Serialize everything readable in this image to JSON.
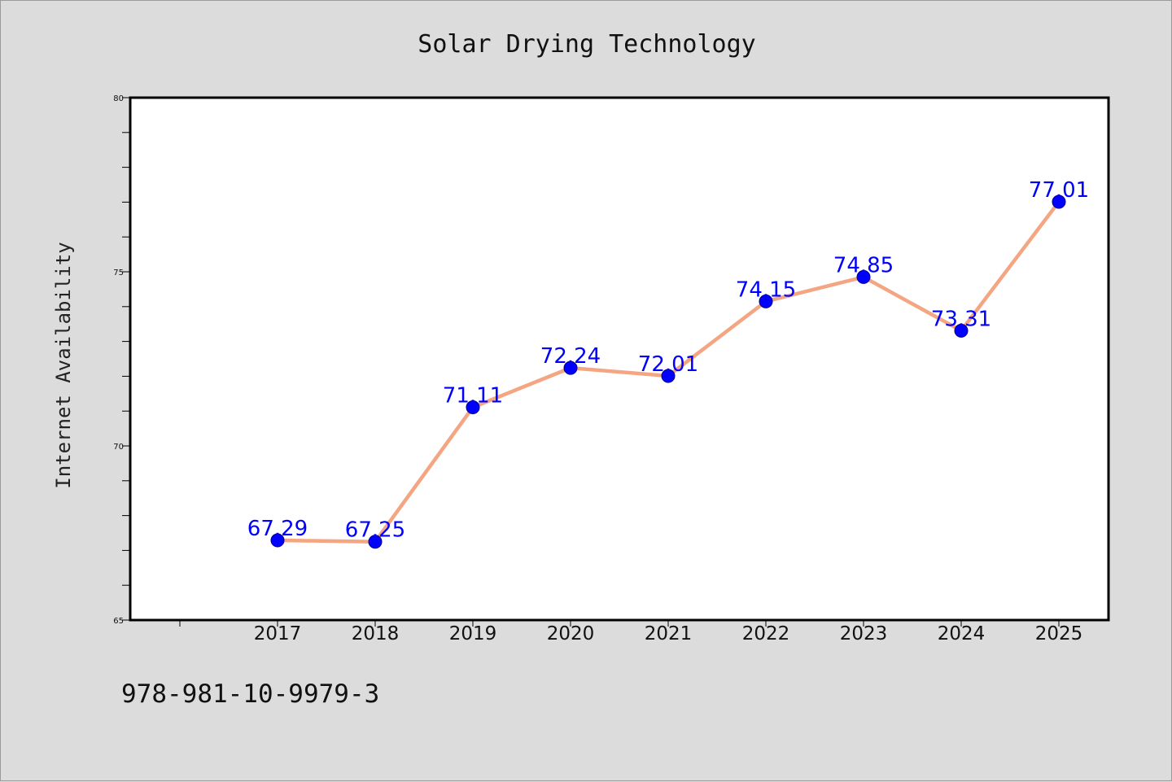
{
  "footnote": "978-981-10-9979-3",
  "chart_data": {
    "type": "line",
    "title": "Solar Drying Technology",
    "xlabel": "",
    "ylabel": "Internet Availability",
    "categories": [
      "2017",
      "2018",
      "2019",
      "2020",
      "2021",
      "2022",
      "2023",
      "2024",
      "2025"
    ],
    "series": [
      {
        "values": [
          67.29,
          67.25,
          71.11,
          72.24,
          72.01,
          74.15,
          74.85,
          73.31,
          77.01
        ],
        "labels": [
          "67.29",
          "67.25",
          "71.11",
          "72.24",
          "72.01",
          "74.15",
          "74.85",
          "73.31",
          "77.01"
        ],
        "line_color": "#f4a582",
        "marker_color": "#0000ff"
      }
    ],
    "ylim": [
      65,
      80
    ],
    "yticks": [
      65,
      70,
      75,
      80
    ],
    "ytick_labels": [
      "65",
      "70",
      "75",
      "80"
    ],
    "grid": false,
    "legend": "none",
    "plot_background": "#ffffff",
    "page_background": "#dcdcdc"
  }
}
